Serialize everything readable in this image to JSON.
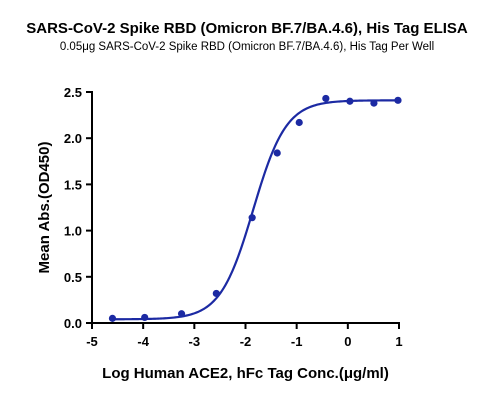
{
  "chart_data": {
    "type": "scatter",
    "title": "SARS-CoV-2 Spike RBD (Omicron BF.7/BA.4.6), His Tag ELISA",
    "subtitle": "0.05μg SARS-CoV-2 Spike RBD (Omicron BF.7/BA.4.6), His Tag Per Well",
    "xlabel": "Log Human ACE2, hFc Tag Conc.(μg/ml)",
    "ylabel": "Mean Abs.(OD450)",
    "xlim": [
      -5,
      1
    ],
    "ylim": [
      0.0,
      2.5
    ],
    "xticks": [
      "-5",
      "-4",
      "-3",
      "-2",
      "-1",
      "0",
      "1"
    ],
    "yticks": [
      "0.0",
      "0.5",
      "1.0",
      "1.5",
      "2.0",
      "2.5"
    ],
    "grid": false,
    "series": [
      {
        "x": [
          -4.6,
          -3.97,
          -3.25,
          -2.57,
          -1.87,
          -1.38,
          -0.95,
          -0.43,
          0.04,
          0.51,
          0.98
        ],
        "y": [
          0.05,
          0.06,
          0.1,
          0.32,
          1.14,
          1.84,
          2.17,
          2.43,
          2.4,
          2.38,
          2.41
        ]
      }
    ],
    "fit_curve": {
      "bottom": 0.04,
      "top": 2.41,
      "logEC50": -1.85,
      "hill": 1.35
    },
    "colors": {
      "series": "#1c2aa3",
      "axis": "#000000"
    }
  }
}
